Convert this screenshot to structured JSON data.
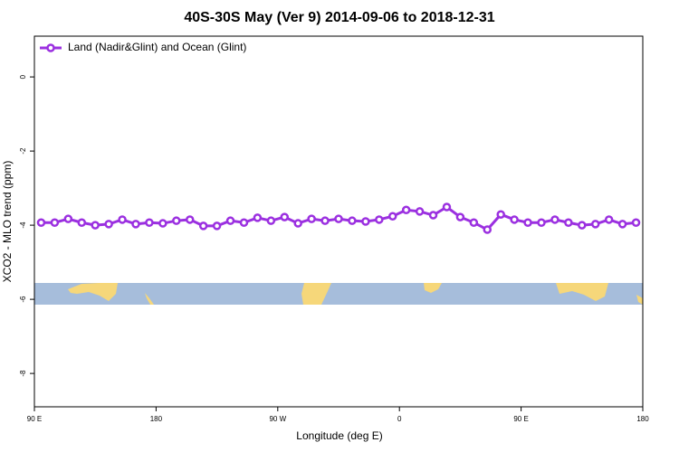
{
  "chart_data": {
    "type": "line",
    "title": "40S-30S May (Ver 9)   2014-09-06 to 2018-12-31",
    "x_label": "Longitude (deg E)",
    "y_label": "XCO2 - MLO trend (ppm)",
    "legend": "top-left",
    "xlim": [
      90,
      540
    ],
    "xticks": [
      {
        "value": 90,
        "label": "90 E"
      },
      {
        "value": 180,
        "label": "180"
      },
      {
        "value": 270,
        "label": "90 W"
      },
      {
        "value": 360,
        "label": "0"
      },
      {
        "value": 450,
        "label": "90 E"
      },
      {
        "value": 540,
        "label": "180"
      }
    ],
    "ylim": [
      -8.9,
      1.1
    ],
    "yticks": [
      0,
      -2,
      -4,
      -6,
      -8
    ],
    "x": [
      95,
      105,
      115,
      125,
      135,
      145,
      155,
      165,
      175,
      185,
      195,
      205,
      215,
      225,
      235,
      245,
      255,
      265,
      275,
      285,
      295,
      305,
      315,
      325,
      335,
      345,
      355,
      365,
      375,
      385,
      395,
      405,
      415,
      425,
      435,
      445,
      455,
      465,
      475,
      485,
      495,
      505,
      515,
      525,
      535
    ],
    "series": [
      {
        "name": "Land (Nadir&Glint) and Ocean (Glint)",
        "color": "#9b30e0",
        "values": [
          -3.93,
          -3.93,
          -3.83,
          -3.93,
          -4.0,
          -3.97,
          -3.85,
          -3.97,
          -3.93,
          -3.95,
          -3.88,
          -3.85,
          -4.02,
          -4.02,
          -3.88,
          -3.93,
          -3.8,
          -3.88,
          -3.78,
          -3.95,
          -3.83,
          -3.88,
          -3.83,
          -3.88,
          -3.9,
          -3.85,
          -3.76,
          -3.59,
          -3.63,
          -3.73,
          -3.51,
          -3.78,
          -3.93,
          -4.12,
          -3.71,
          -3.85,
          -3.93,
          -3.93,
          -3.85,
          -3.93,
          -4.0,
          -3.97,
          -3.85,
          -3.97,
          -3.93
        ]
      }
    ]
  }
}
